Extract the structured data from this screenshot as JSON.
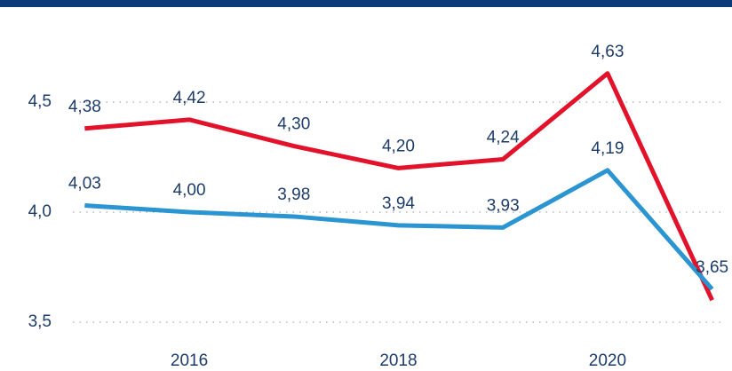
{
  "chart_data": {
    "type": "line",
    "x": [
      2015,
      2016,
      2017,
      2018,
      2019,
      2020,
      2021
    ],
    "series": [
      {
        "color": "#e2122b",
        "values": [
          4.38,
          4.42,
          4.3,
          4.2,
          4.24,
          4.63,
          3.6
        ],
        "value_labels": [
          "4,38",
          "4,42",
          "4,30",
          "4,20",
          "4,24",
          "4,63",
          null
        ]
      },
      {
        "color": "#2a95d1",
        "values": [
          4.03,
          4.0,
          3.98,
          3.94,
          3.93,
          4.19,
          3.65
        ],
        "value_labels": [
          "4,03",
          "4,00",
          "3,98",
          "3,94",
          "3,93",
          "4,19",
          "3,65"
        ]
      }
    ],
    "xlim": [
      2014.19,
      2021.19
    ],
    "xticks": [
      2016,
      2018,
      2020
    ],
    "ylim": [
      3.383,
      4.883
    ],
    "yticks": [
      {
        "value": 3.5,
        "label": "3,5"
      },
      {
        "value": 4.0,
        "label": "4,0"
      },
      {
        "value": 4.5,
        "label": "4,5"
      }
    ],
    "grid": true
  }
}
